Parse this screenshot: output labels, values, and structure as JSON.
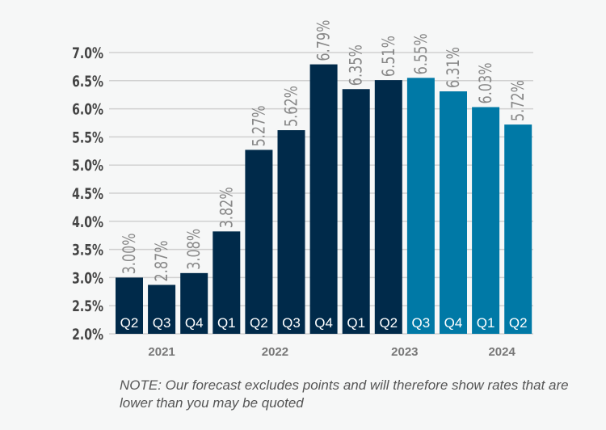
{
  "chart_data": {
    "type": "bar",
    "title": "",
    "xlabel": "",
    "ylabel": "",
    "ylim": [
      2.0,
      7.0
    ],
    "yticks": [
      "2.0%",
      "2.5%",
      "3.0%",
      "3.5%",
      "4.0%",
      "4.5%",
      "5.0%",
      "5.5%",
      "6.0%",
      "6.5%",
      "7.0%"
    ],
    "ytick_values": [
      2.0,
      2.5,
      3.0,
      3.5,
      4.0,
      4.5,
      5.0,
      5.5,
      6.0,
      6.5,
      7.0
    ],
    "grid": true,
    "categories": [
      "Q2",
      "Q3",
      "Q4",
      "Q1",
      "Q2",
      "Q3",
      "Q4",
      "Q1",
      "Q2",
      "Q3",
      "Q4",
      "Q1",
      "Q2"
    ],
    "years": [
      {
        "label": "2021",
        "start": 0,
        "end": 2
      },
      {
        "label": "2022",
        "start": 3,
        "end": 6
      },
      {
        "label": "2023",
        "start": 7,
        "end": 10
      },
      {
        "label": "2024",
        "start": 11,
        "end": 12
      }
    ],
    "values": [
      3.0,
      2.87,
      3.08,
      3.82,
      5.27,
      5.62,
      6.79,
      6.35,
      6.51,
      6.55,
      6.31,
      6.03,
      5.72
    ],
    "value_labels": [
      "3.00%",
      "2.87%",
      "3.08%",
      "3.82%",
      "5.27%",
      "5.62%",
      "6.79%",
      "6.35%",
      "6.51%",
      "6.55%",
      "6.31%",
      "6.03%",
      "5.72%"
    ],
    "series_type": [
      "actual",
      "actual",
      "actual",
      "actual",
      "actual",
      "actual",
      "actual",
      "actual",
      "actual",
      "forecast",
      "forecast",
      "forecast",
      "forecast"
    ],
    "colors": {
      "actual": "#002a4a",
      "forecast": "#0079a6",
      "grid": "#d0d0d0",
      "axis_text": "#444444",
      "value_text": "#888888",
      "year_text": "#777777"
    }
  },
  "note": "NOTE: Our forecast excludes points and will therefore show rates that are lower than you may be quoted"
}
